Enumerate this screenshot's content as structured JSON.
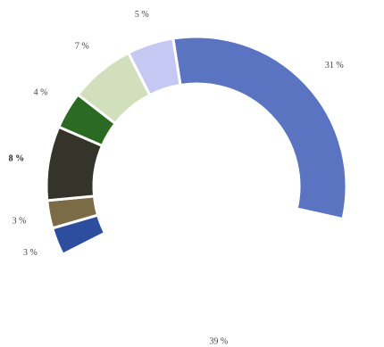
{
  "chart_data": {
    "type": "pie",
    "variant": "donut",
    "title": "",
    "slices": [
      {
        "label": "31 %",
        "value": 31,
        "color": "#5a74c2"
      },
      {
        "label": "39 %",
        "value": 39,
        "color": "#ffffff"
      },
      {
        "label": "3 %",
        "value": 3,
        "color": "#2d4e9e"
      },
      {
        "label": "3 %",
        "value": 3,
        "color": "#7b6b46"
      },
      {
        "label": "8 %",
        "value": 8,
        "color": "#34342a"
      },
      {
        "label": "4 %",
        "value": 4,
        "color": "#2b6a22"
      },
      {
        "label": "7 %",
        "value": 7,
        "color": "#d2dfbd"
      },
      {
        "label": "5 %",
        "value": 5,
        "color": "#c6c8f4"
      }
    ]
  }
}
